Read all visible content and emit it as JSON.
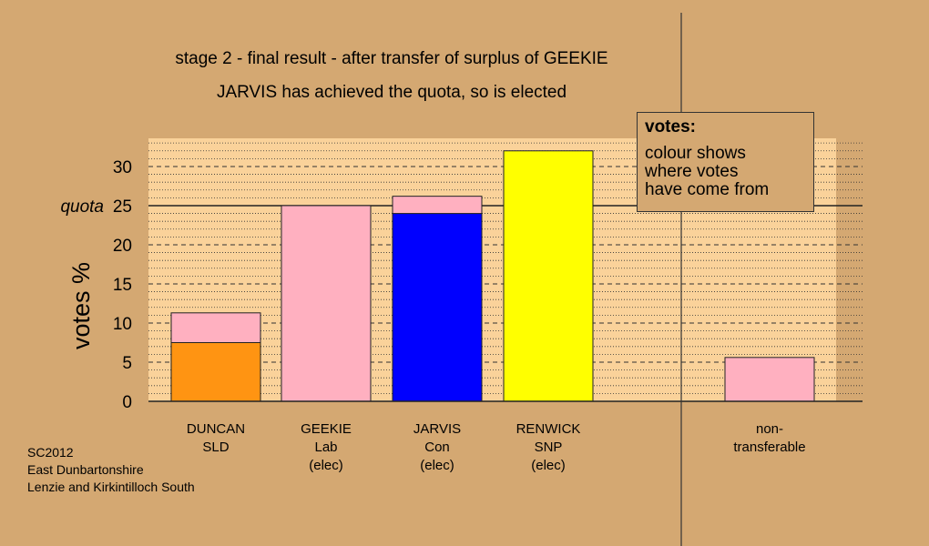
{
  "title_line1": "stage 2 - final result - after transfer of surplus of GEEKIE",
  "title_line2": "JARVIS has achieved the quota, so is elected",
  "legend": {
    "heading": "votes:",
    "lines": [
      "colour shows",
      "where votes",
      "have come from"
    ]
  },
  "source": [
    "SC2012",
    "East Dunbartonshire",
    "Lenzie and Kirkintilloch South"
  ],
  "colors": {
    "background": "#D4A872",
    "plot_area": "#FAD29A",
    "SLD": "#FF9412",
    "Lab": "#FFB0C0",
    "Con": "#0000FF",
    "SNP": "#FFFF00"
  },
  "chart_data": {
    "type": "bar",
    "stacked": true,
    "ylabel": "votes %",
    "ylim": [
      0,
      33.6
    ],
    "yticks": [
      0,
      5,
      10,
      15,
      20,
      25,
      30
    ],
    "quota": 25.0,
    "quota_label": "quota",
    "categories": [
      [
        "DUNCAN",
        "SLD"
      ],
      [
        "GEEKIE",
        "Lab",
        "(elec)"
      ],
      [
        "JARVIS",
        "Con",
        "(elec)"
      ],
      [
        "RENWICK",
        "SNP",
        "(elec)"
      ],
      [
        "non-",
        "transferable"
      ]
    ],
    "segments": [
      [
        {
          "party": "SLD",
          "value": 7.5
        },
        {
          "party": "Lab",
          "value": 3.8
        }
      ],
      [
        {
          "party": "Lab",
          "value": 25.0
        }
      ],
      [
        {
          "party": "Con",
          "value": 24.0
        },
        {
          "party": "Lab",
          "value": 2.2
        }
      ],
      [
        {
          "party": "SNP",
          "value": 32.0
        }
      ],
      [
        {
          "party": "Lab",
          "value": 5.6
        }
      ]
    ]
  }
}
